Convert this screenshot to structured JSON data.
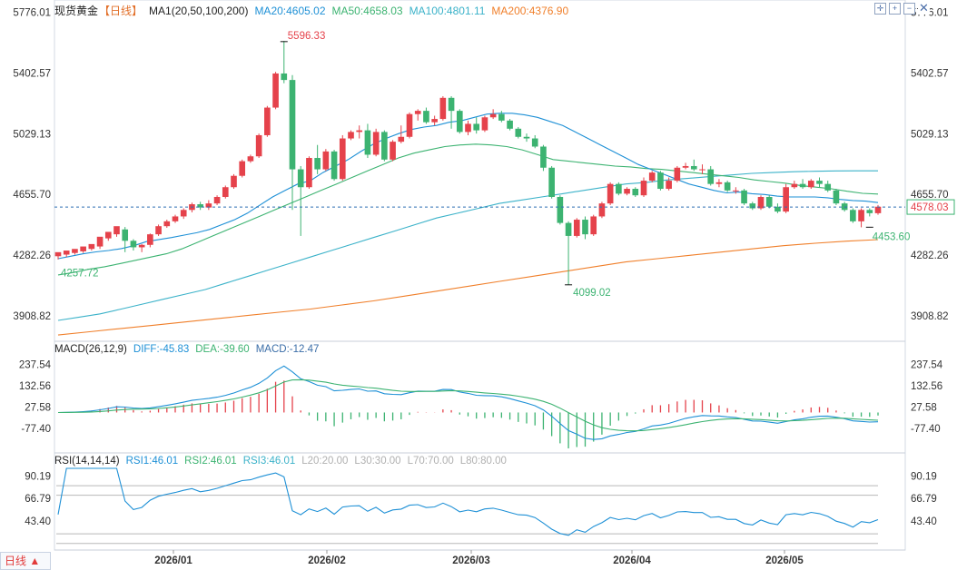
{
  "header": {
    "symbol": "现货黄金",
    "period_tag": "【日线】",
    "ma_indicator": "MA1(20,50,100,200)",
    "ma20": "MA20:4605.02",
    "ma50": "MA50:4658.03",
    "ma100": "MA100:4801.11",
    "ma200": "MA200:4376.90"
  },
  "macd_header": {
    "name": "MACD(26,12,9)",
    "diff": "DIFF:-45.83",
    "dea": "DEA:-39.60",
    "macd": "MACD:-12.47"
  },
  "rsi_header": {
    "name": "RSI(14,14,14)",
    "rsi1": "RSI1:46.01",
    "rsi2": "RSI2:46.01",
    "rsi3": "RSI3:46.01",
    "l20": "L20:20.00",
    "l30": "L30:30.00",
    "l70": "L70:70.00",
    "l80": "L80:80.00"
  },
  "toolbar": {
    "icons": [
      "crosshair-icon",
      "zoom-in-icon",
      "zoom-out-icon",
      "close-icon"
    ],
    "period_button": "日线 ▲"
  },
  "colors": {
    "up": "#e5424b",
    "down": "#3cb371",
    "ma20": "#1e90d6",
    "ma50": "#3cb371",
    "ma100": "#3bb2c9",
    "ma200": "#f07f2a",
    "last_price_bg": "#3cb371"
  },
  "chart_data": [
    {
      "type": "candlestick",
      "x_ticks": [
        "2026/01",
        "2026/02",
        "2026/03",
        "2026/04",
        "2026/05"
      ],
      "y_ticks": [
        5776.01,
        5402.57,
        5029.13,
        4655.7,
        4282.26,
        3908.82
      ],
      "ylim": [
        3785,
        5830
      ],
      "last_price": 4578.03,
      "annotations": {
        "high": 5596.33,
        "low": 4099.02,
        "start_low": 4257.72,
        "recent_low": 4453.6
      },
      "candles": [
        [
          4275,
          4300,
          4255,
          4285
        ],
        [
          4285,
          4310,
          4270,
          4295
        ],
        [
          4295,
          4320,
          4285,
          4305
        ],
        [
          4305,
          4335,
          4295,
          4320
        ],
        [
          4320,
          4350,
          4310,
          4335
        ],
        [
          4335,
          4395,
          4320,
          4385
        ],
        [
          4385,
          4425,
          4370,
          4410
        ],
        [
          4410,
          4460,
          4395,
          4440
        ],
        [
          4440,
          4370,
          4300,
          4455
        ],
        [
          4370,
          4330,
          4310,
          4380
        ],
        [
          4330,
          4345,
          4300,
          4350
        ],
        [
          4345,
          4410,
          4330,
          4415
        ],
        [
          4410,
          4460,
          4400,
          4470
        ],
        [
          4460,
          4490,
          4450,
          4500
        ],
        [
          4490,
          4520,
          4480,
          4530
        ],
        [
          4520,
          4560,
          4505,
          4570
        ],
        [
          4560,
          4595,
          4545,
          4605
        ],
        [
          4595,
          4575,
          4560,
          4610
        ],
        [
          4575,
          4600,
          4560,
          4620
        ],
        [
          4600,
          4640,
          4590,
          4650
        ],
        [
          4640,
          4700,
          4630,
          4710
        ],
        [
          4700,
          4770,
          4690,
          4780
        ],
        [
          4770,
          4860,
          4760,
          4870
        ],
        [
          4860,
          4890,
          4850,
          4900
        ],
        [
          4890,
          5020,
          4880,
          5030
        ],
        [
          5020,
          5190,
          5010,
          5200
        ],
        [
          5190,
          5400,
          5180,
          5410
        ],
        [
          5400,
          5360,
          5340,
          5600
        ],
        [
          5360,
          4810,
          4560,
          5390
        ],
        [
          4810,
          4700,
          4400,
          4830
        ],
        [
          4700,
          4880,
          4690,
          4890
        ],
        [
          4880,
          4810,
          4780,
          4960
        ],
        [
          4810,
          4920,
          4800,
          4935
        ],
        [
          4920,
          4750,
          4740,
          4930
        ],
        [
          4750,
          5000,
          4740,
          5020
        ],
        [
          5000,
          5040,
          4990,
          5050
        ],
        [
          5040,
          5050,
          5000,
          5080
        ],
        [
          5050,
          4900,
          4880,
          5090
        ],
        [
          4900,
          5040,
          4890,
          5060
        ],
        [
          5040,
          4870,
          4860,
          5050
        ],
        [
          4870,
          4980,
          4860,
          4990
        ],
        [
          4980,
          5010,
          4970,
          5080
        ],
        [
          5010,
          5150,
          5000,
          5160
        ],
        [
          5150,
          5170,
          5110,
          5180
        ],
        [
          5170,
          5100,
          5090,
          5190
        ],
        [
          5100,
          5120,
          5080,
          5140
        ],
        [
          5120,
          5250,
          5110,
          5260
        ],
        [
          5250,
          5170,
          5060,
          5260
        ],
        [
          5170,
          5040,
          5030,
          5180
        ],
        [
          5040,
          5090,
          5020,
          5110
        ],
        [
          5090,
          5050,
          5030,
          5130
        ],
        [
          5050,
          5130,
          5040,
          5140
        ],
        [
          5130,
          5150,
          5120,
          5180
        ],
        [
          5150,
          5110,
          5100,
          5170
        ],
        [
          5110,
          5060,
          5050,
          5120
        ],
        [
          5060,
          5010,
          5000,
          5070
        ],
        [
          5010,
          5000,
          4980,
          5030
        ],
        [
          5000,
          4950,
          4940,
          5020
        ],
        [
          4950,
          4820,
          4800,
          4960
        ],
        [
          4820,
          4640,
          4630,
          4830
        ],
        [
          4640,
          4480,
          4470,
          4650
        ],
        [
          4480,
          4400,
          4099,
          4490
        ],
        [
          4400,
          4500,
          4390,
          4510
        ],
        [
          4500,
          4410,
          4380,
          4520
        ],
        [
          4410,
          4520,
          4400,
          4530
        ],
        [
          4520,
          4600,
          4510,
          4610
        ],
        [
          4600,
          4720,
          4590,
          4730
        ],
        [
          4720,
          4660,
          4650,
          4730
        ],
        [
          4660,
          4690,
          4650,
          4700
        ],
        [
          4690,
          4650,
          4640,
          4700
        ],
        [
          4650,
          4740,
          4640,
          4760
        ],
        [
          4740,
          4790,
          4730,
          4800
        ],
        [
          4790,
          4690,
          4680,
          4800
        ],
        [
          4690,
          4740,
          4680,
          4760
        ],
        [
          4740,
          4820,
          4730,
          4830
        ],
        [
          4820,
          4830,
          4810,
          4850
        ],
        [
          4830,
          4810,
          4800,
          4870
        ],
        [
          4810,
          4810,
          4780,
          4840
        ],
        [
          4810,
          4720,
          4710,
          4830
        ],
        [
          4720,
          4730,
          4700,
          4750
        ],
        [
          4730,
          4680,
          4670,
          4740
        ],
        [
          4680,
          4680,
          4660,
          4700
        ],
        [
          4680,
          4600,
          4590,
          4690
        ],
        [
          4600,
          4570,
          4560,
          4610
        ],
        [
          4570,
          4640,
          4560,
          4650
        ],
        [
          4640,
          4580,
          4570,
          4650
        ],
        [
          4580,
          4550,
          4540,
          4600
        ],
        [
          4550,
          4700,
          4540,
          4720
        ],
        [
          4700,
          4720,
          4690,
          4740
        ],
        [
          4720,
          4700,
          4690,
          4750
        ],
        [
          4700,
          4740,
          4690,
          4750
        ],
        [
          4740,
          4720,
          4700,
          4760
        ],
        [
          4720,
          4680,
          4670,
          4740
        ],
        [
          4680,
          4600,
          4590,
          4690
        ],
        [
          4600,
          4560,
          4550,
          4610
        ],
        [
          4560,
          4490,
          4480,
          4570
        ],
        [
          4490,
          4560,
          4453,
          4570
        ],
        [
          4560,
          4540,
          4520,
          4570
        ],
        [
          4540,
          4580,
          4530,
          4590
        ]
      ],
      "ma20": [
        4260,
        4275,
        4290,
        4302,
        4310,
        4322,
        4340,
        4365,
        4378,
        4390,
        4405,
        4420,
        4440,
        4470,
        4500,
        4540,
        4590,
        4640,
        4680,
        4720,
        4740,
        4790,
        4830,
        4870,
        4920,
        4965,
        5000,
        5030,
        5055,
        5070,
        5080,
        5100,
        5110,
        5130,
        5150,
        5155,
        5155,
        5145,
        5130,
        5105,
        5080,
        5040,
        5000,
        4960,
        4920,
        4880,
        4840,
        4810,
        4780,
        4750,
        4720,
        4700,
        4680,
        4665,
        4670,
        4660,
        4655,
        4645,
        4640,
        4640,
        4640,
        4635,
        4625,
        4618,
        4614,
        4605
      ],
      "ma50": [
        4160,
        4175,
        4195,
        4210,
        4230,
        4250,
        4270,
        4290,
        4320,
        4360,
        4400,
        4440,
        4480,
        4520,
        4560,
        4600,
        4640,
        4680,
        4720,
        4760,
        4800,
        4840,
        4880,
        4910,
        4930,
        4950,
        4960,
        4965,
        4960,
        4950,
        4930,
        4900,
        4870,
        4860,
        4850,
        4840,
        4830,
        4825,
        4815,
        4810,
        4800,
        4790,
        4780,
        4770,
        4760,
        4745,
        4735,
        4725,
        4710,
        4700,
        4690,
        4675,
        4662,
        4658
      ],
      "ma100": [
        3880,
        3900,
        3920,
        3950,
        3980,
        4010,
        4040,
        4070,
        4110,
        4150,
        4190,
        4230,
        4270,
        4310,
        4350,
        4390,
        4430,
        4470,
        4510,
        4540,
        4570,
        4600,
        4620,
        4640,
        4660,
        4680,
        4700,
        4720,
        4730,
        4745,
        4755,
        4765,
        4775,
        4785,
        4790,
        4795,
        4798,
        4800,
        4801,
        4801
      ],
      "ma200": [
        3790,
        3810,
        3830,
        3850,
        3870,
        3890,
        3910,
        3930,
        3950,
        3975,
        4000,
        4030,
        4060,
        4090,
        4120,
        4150,
        4180,
        4210,
        4240,
        4260,
        4280,
        4300,
        4320,
        4340,
        4355,
        4368,
        4377
      ],
      "macd": {
        "y_ticks": [
          237.54,
          132.56,
          27.58,
          -77.4
        ],
        "ylim": [
          -190,
          270
        ],
        "values": {
          "diff": -45.83,
          "dea": -39.6,
          "macd": -12.47
        }
      },
      "rsi": {
        "y_ticks": [
          90.19,
          66.79,
          43.4
        ],
        "ylim": [
          15,
          98
        ],
        "levels": [
          20,
          30,
          70,
          80
        ],
        "values": {
          "rsi1": 46.01,
          "rsi2": 46.01,
          "rsi3": 46.01
        }
      }
    }
  ]
}
